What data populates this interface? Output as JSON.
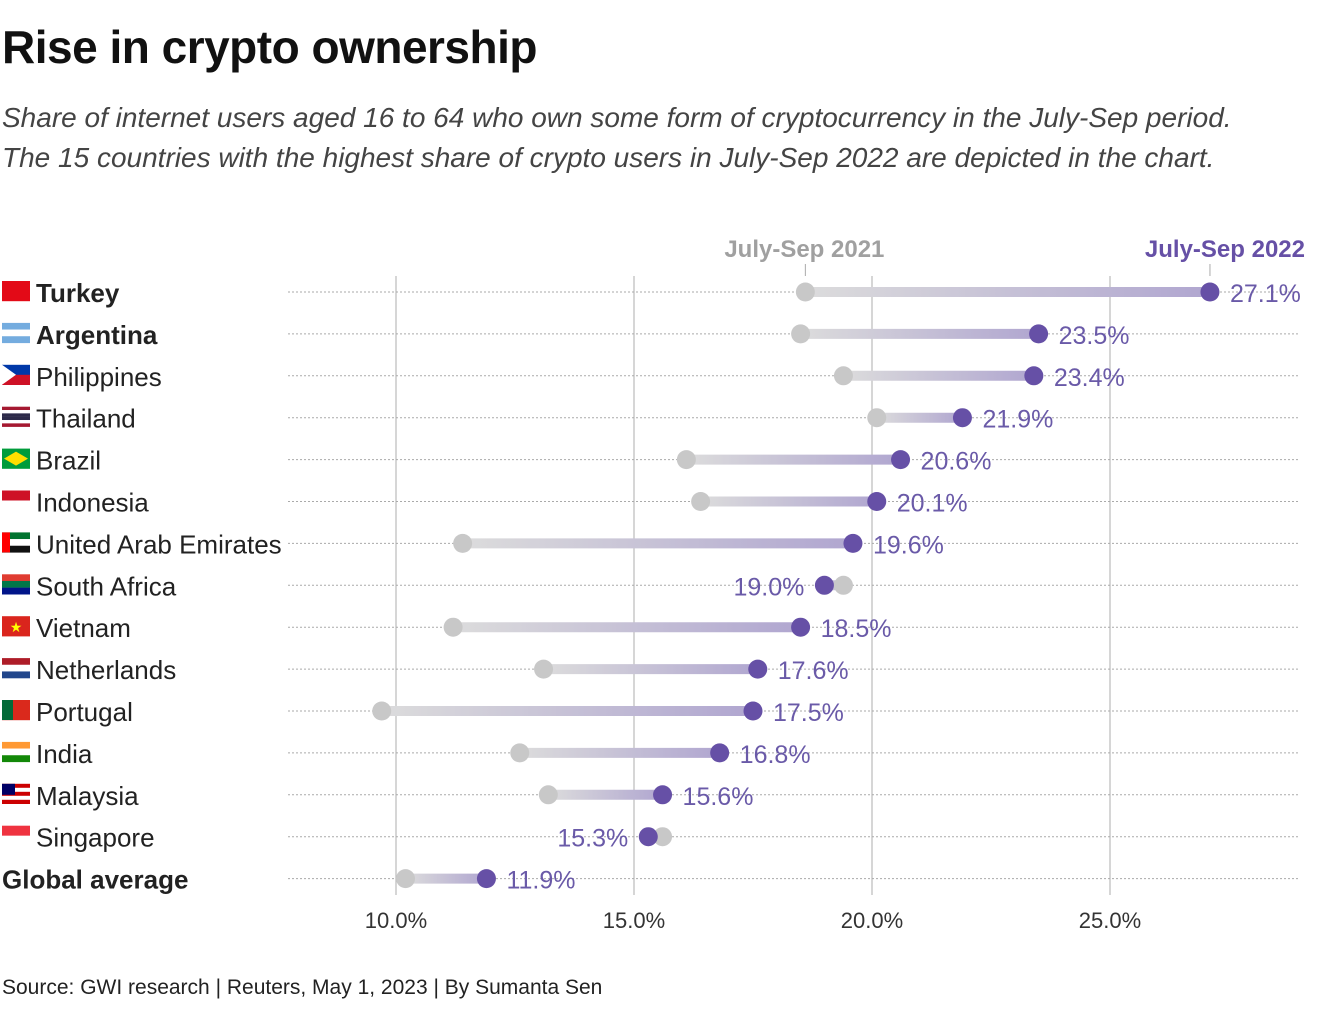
{
  "title": "Rise in crypto ownership",
  "subtitle_lines": [
    "Share of internet users aged 16 to 64 who own some form of cryptocurrency in the July-Sep period.",
    "The 15 countries with the highest share of crypto users in July-Sep 2022 are depicted in the chart."
  ],
  "source": "Source: GWI research | Reuters, May 1, 2023 | By Sumanta Sen",
  "colors": {
    "y2021": "#c8c8c8",
    "y2022": "#6650a6",
    "label_2022": "#6a5aa8",
    "label_2021": "#999999"
  },
  "chart_data": {
    "type": "dumbbell",
    "series": [
      {
        "name": "July-Sep 2021"
      },
      {
        "name": "July-Sep 2022"
      }
    ],
    "xlim": [
      7.7,
      29
    ],
    "x_ticks": [
      10,
      15,
      20,
      25
    ],
    "x_tick_labels": [
      "10.0%",
      "15.0%",
      "20.0%",
      "25.0%"
    ],
    "grid": true,
    "rows": [
      {
        "country": "Turkey",
        "bold": true,
        "v2021": 18.6,
        "v2022": 27.1,
        "label": "27.1%"
      },
      {
        "country": "Argentina",
        "bold": true,
        "v2021": 18.5,
        "v2022": 23.5,
        "label": "23.5%"
      },
      {
        "country": "Philippines",
        "v2021": 19.4,
        "v2022": 23.4,
        "label": "23.4%"
      },
      {
        "country": "Thailand",
        "v2021": 20.1,
        "v2022": 21.9,
        "label": "21.9%"
      },
      {
        "country": "Brazil",
        "v2021": 16.1,
        "v2022": 20.6,
        "label": "20.6%"
      },
      {
        "country": "Indonesia",
        "v2021": 16.4,
        "v2022": 20.1,
        "label": "20.1%"
      },
      {
        "country": "United Arab Emirates",
        "v2021": 11.4,
        "v2022": 19.6,
        "label": "19.6%"
      },
      {
        "country": "South Africa",
        "v2021": 19.4,
        "v2022": 19.0,
        "label": "19.0%"
      },
      {
        "country": "Vietnam",
        "v2021": 11.2,
        "v2022": 18.5,
        "label": "18.5%"
      },
      {
        "country": "Netherlands",
        "v2021": 13.1,
        "v2022": 17.6,
        "label": "17.6%"
      },
      {
        "country": "Portugal",
        "v2021": 9.7,
        "v2022": 17.5,
        "label": "17.5%"
      },
      {
        "country": "India",
        "v2021": 12.6,
        "v2022": 16.8,
        "label": "16.8%"
      },
      {
        "country": "Malaysia",
        "v2021": 13.2,
        "v2022": 15.6,
        "label": "15.6%"
      },
      {
        "country": "Singapore",
        "v2021": 15.6,
        "v2022": 15.3,
        "label": "15.3%"
      },
      {
        "country": "Global average",
        "bold": true,
        "noflag": true,
        "v2021": 10.2,
        "v2022": 11.9,
        "label": "11.9%"
      }
    ]
  }
}
